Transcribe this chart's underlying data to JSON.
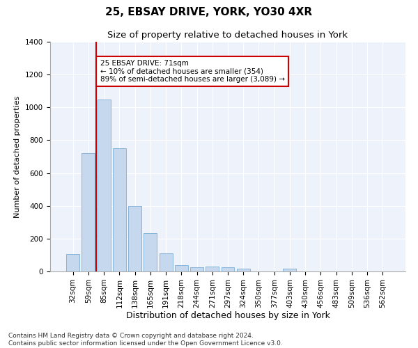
{
  "title1": "25, EBSAY DRIVE, YORK, YO30 4XR",
  "title2": "Size of property relative to detached houses in York",
  "xlabel": "Distribution of detached houses by size in York",
  "ylabel": "Number of detached properties",
  "categories": [
    "32sqm",
    "59sqm",
    "85sqm",
    "112sqm",
    "138sqm",
    "165sqm",
    "191sqm",
    "218sqm",
    "244sqm",
    "271sqm",
    "297sqm",
    "324sqm",
    "350sqm",
    "377sqm",
    "403sqm",
    "430sqm",
    "456sqm",
    "483sqm",
    "509sqm",
    "536sqm",
    "562sqm"
  ],
  "values": [
    105,
    720,
    1050,
    750,
    400,
    235,
    110,
    40,
    25,
    28,
    25,
    15,
    0,
    0,
    15,
    0,
    0,
    0,
    0,
    0,
    0
  ],
  "bar_color": "#c5d8ee",
  "bar_edge_color": "#7aadd4",
  "vline_x": 1.5,
  "vline_color": "#cc0000",
  "annotation_text": "25 EBSAY DRIVE: 71sqm\n← 10% of detached houses are smaller (354)\n89% of semi-detached houses are larger (3,089) →",
  "annotation_box_color": "#ffffff",
  "annotation_box_edge_color": "#cc0000",
  "ylim": [
    0,
    1400
  ],
  "yticks": [
    0,
    200,
    400,
    600,
    800,
    1000,
    1200,
    1400
  ],
  "footer": "Contains HM Land Registry data © Crown copyright and database right 2024.\nContains public sector information licensed under the Open Government Licence v3.0.",
  "bg_color": "#eef2fa",
  "grid_color": "#ffffff",
  "title1_fontsize": 11,
  "title2_fontsize": 9.5,
  "xlabel_fontsize": 9,
  "ylabel_fontsize": 8,
  "footer_fontsize": 6.5,
  "tick_fontsize": 7.5
}
